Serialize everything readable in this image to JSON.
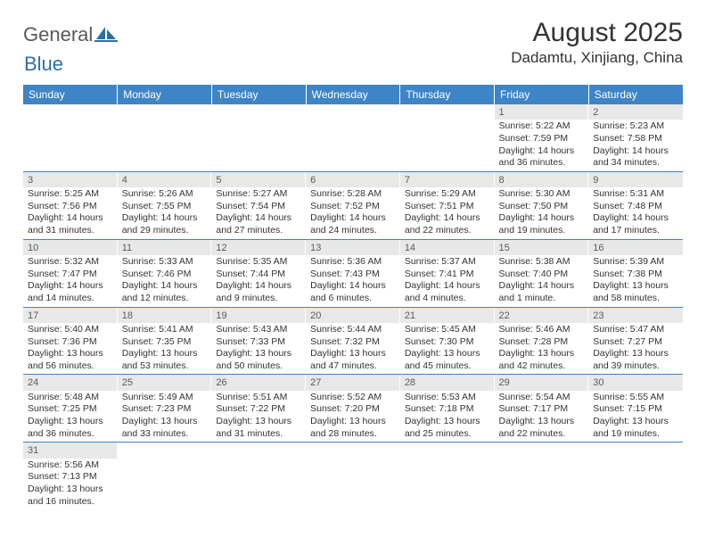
{
  "logo": {
    "text1": "General",
    "text2": "Blue"
  },
  "header": {
    "month_title": "August 2025",
    "location": "Dadamtu, Xinjiang, China"
  },
  "colors": {
    "header_bg": "#3d85c6",
    "header_text": "#ffffff",
    "daynum_bg": "#e8e8e8",
    "daynum_text": "#5a5a5a",
    "cell_border": "#3d85c6",
    "body_text": "#333333",
    "logo_gray": "#5a5a5a",
    "logo_blue": "#2f6fa8"
  },
  "day_labels": [
    "Sunday",
    "Monday",
    "Tuesday",
    "Wednesday",
    "Thursday",
    "Friday",
    "Saturday"
  ],
  "weeks": [
    [
      null,
      null,
      null,
      null,
      null,
      {
        "n": "1",
        "sr": "Sunrise: 5:22 AM",
        "ss": "Sunset: 7:59 PM",
        "dl": "Daylight: 14 hours and 36 minutes."
      },
      {
        "n": "2",
        "sr": "Sunrise: 5:23 AM",
        "ss": "Sunset: 7:58 PM",
        "dl": "Daylight: 14 hours and 34 minutes."
      }
    ],
    [
      {
        "n": "3",
        "sr": "Sunrise: 5:25 AM",
        "ss": "Sunset: 7:56 PM",
        "dl": "Daylight: 14 hours and 31 minutes."
      },
      {
        "n": "4",
        "sr": "Sunrise: 5:26 AM",
        "ss": "Sunset: 7:55 PM",
        "dl": "Daylight: 14 hours and 29 minutes."
      },
      {
        "n": "5",
        "sr": "Sunrise: 5:27 AM",
        "ss": "Sunset: 7:54 PM",
        "dl": "Daylight: 14 hours and 27 minutes."
      },
      {
        "n": "6",
        "sr": "Sunrise: 5:28 AM",
        "ss": "Sunset: 7:52 PM",
        "dl": "Daylight: 14 hours and 24 minutes."
      },
      {
        "n": "7",
        "sr": "Sunrise: 5:29 AM",
        "ss": "Sunset: 7:51 PM",
        "dl": "Daylight: 14 hours and 22 minutes."
      },
      {
        "n": "8",
        "sr": "Sunrise: 5:30 AM",
        "ss": "Sunset: 7:50 PM",
        "dl": "Daylight: 14 hours and 19 minutes."
      },
      {
        "n": "9",
        "sr": "Sunrise: 5:31 AM",
        "ss": "Sunset: 7:48 PM",
        "dl": "Daylight: 14 hours and 17 minutes."
      }
    ],
    [
      {
        "n": "10",
        "sr": "Sunrise: 5:32 AM",
        "ss": "Sunset: 7:47 PM",
        "dl": "Daylight: 14 hours and 14 minutes."
      },
      {
        "n": "11",
        "sr": "Sunrise: 5:33 AM",
        "ss": "Sunset: 7:46 PM",
        "dl": "Daylight: 14 hours and 12 minutes."
      },
      {
        "n": "12",
        "sr": "Sunrise: 5:35 AM",
        "ss": "Sunset: 7:44 PM",
        "dl": "Daylight: 14 hours and 9 minutes."
      },
      {
        "n": "13",
        "sr": "Sunrise: 5:36 AM",
        "ss": "Sunset: 7:43 PM",
        "dl": "Daylight: 14 hours and 6 minutes."
      },
      {
        "n": "14",
        "sr": "Sunrise: 5:37 AM",
        "ss": "Sunset: 7:41 PM",
        "dl": "Daylight: 14 hours and 4 minutes."
      },
      {
        "n": "15",
        "sr": "Sunrise: 5:38 AM",
        "ss": "Sunset: 7:40 PM",
        "dl": "Daylight: 14 hours and 1 minute."
      },
      {
        "n": "16",
        "sr": "Sunrise: 5:39 AM",
        "ss": "Sunset: 7:38 PM",
        "dl": "Daylight: 13 hours and 58 minutes."
      }
    ],
    [
      {
        "n": "17",
        "sr": "Sunrise: 5:40 AM",
        "ss": "Sunset: 7:36 PM",
        "dl": "Daylight: 13 hours and 56 minutes."
      },
      {
        "n": "18",
        "sr": "Sunrise: 5:41 AM",
        "ss": "Sunset: 7:35 PM",
        "dl": "Daylight: 13 hours and 53 minutes."
      },
      {
        "n": "19",
        "sr": "Sunrise: 5:43 AM",
        "ss": "Sunset: 7:33 PM",
        "dl": "Daylight: 13 hours and 50 minutes."
      },
      {
        "n": "20",
        "sr": "Sunrise: 5:44 AM",
        "ss": "Sunset: 7:32 PM",
        "dl": "Daylight: 13 hours and 47 minutes."
      },
      {
        "n": "21",
        "sr": "Sunrise: 5:45 AM",
        "ss": "Sunset: 7:30 PM",
        "dl": "Daylight: 13 hours and 45 minutes."
      },
      {
        "n": "22",
        "sr": "Sunrise: 5:46 AM",
        "ss": "Sunset: 7:28 PM",
        "dl": "Daylight: 13 hours and 42 minutes."
      },
      {
        "n": "23",
        "sr": "Sunrise: 5:47 AM",
        "ss": "Sunset: 7:27 PM",
        "dl": "Daylight: 13 hours and 39 minutes."
      }
    ],
    [
      {
        "n": "24",
        "sr": "Sunrise: 5:48 AM",
        "ss": "Sunset: 7:25 PM",
        "dl": "Daylight: 13 hours and 36 minutes."
      },
      {
        "n": "25",
        "sr": "Sunrise: 5:49 AM",
        "ss": "Sunset: 7:23 PM",
        "dl": "Daylight: 13 hours and 33 minutes."
      },
      {
        "n": "26",
        "sr": "Sunrise: 5:51 AM",
        "ss": "Sunset: 7:22 PM",
        "dl": "Daylight: 13 hours and 31 minutes."
      },
      {
        "n": "27",
        "sr": "Sunrise: 5:52 AM",
        "ss": "Sunset: 7:20 PM",
        "dl": "Daylight: 13 hours and 28 minutes."
      },
      {
        "n": "28",
        "sr": "Sunrise: 5:53 AM",
        "ss": "Sunset: 7:18 PM",
        "dl": "Daylight: 13 hours and 25 minutes."
      },
      {
        "n": "29",
        "sr": "Sunrise: 5:54 AM",
        "ss": "Sunset: 7:17 PM",
        "dl": "Daylight: 13 hours and 22 minutes."
      },
      {
        "n": "30",
        "sr": "Sunrise: 5:55 AM",
        "ss": "Sunset: 7:15 PM",
        "dl": "Daylight: 13 hours and 19 minutes."
      }
    ],
    [
      {
        "n": "31",
        "sr": "Sunrise: 5:56 AM",
        "ss": "Sunset: 7:13 PM",
        "dl": "Daylight: 13 hours and 16 minutes."
      },
      null,
      null,
      null,
      null,
      null,
      null
    ]
  ]
}
